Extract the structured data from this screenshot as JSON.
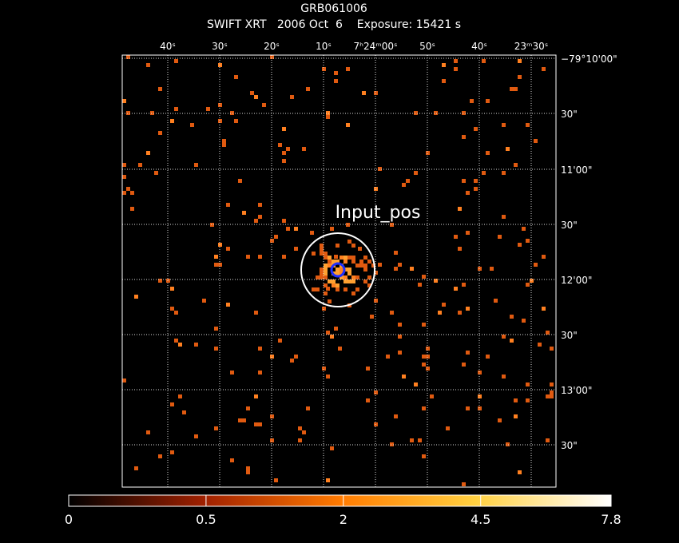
{
  "header": {
    "title": "GRB061006",
    "subtitle": "SWIFT XRT   2006 Oct  6    Exposure: 15421 s"
  },
  "image": {
    "annotation": "Input_pos",
    "ra_labels": [
      "40ˢ",
      "30ˢ",
      "20ˢ",
      "10ˢ",
      "7ʰ24ᵐ00ˢ",
      "50ˢ",
      "40ˢ",
      "23ᵐ30ˢ"
    ],
    "dec_labels": [
      "−79°10'00\"",
      "30\"",
      "11'00\"",
      "30\"",
      "12'00\"",
      "30\"",
      "13'00\"",
      "30\""
    ]
  },
  "colorbar": {
    "scale": "sqrt",
    "range": [
      0,
      7.8
    ],
    "ticks": [
      0,
      0.5,
      2,
      4.5,
      7.8
    ]
  }
}
